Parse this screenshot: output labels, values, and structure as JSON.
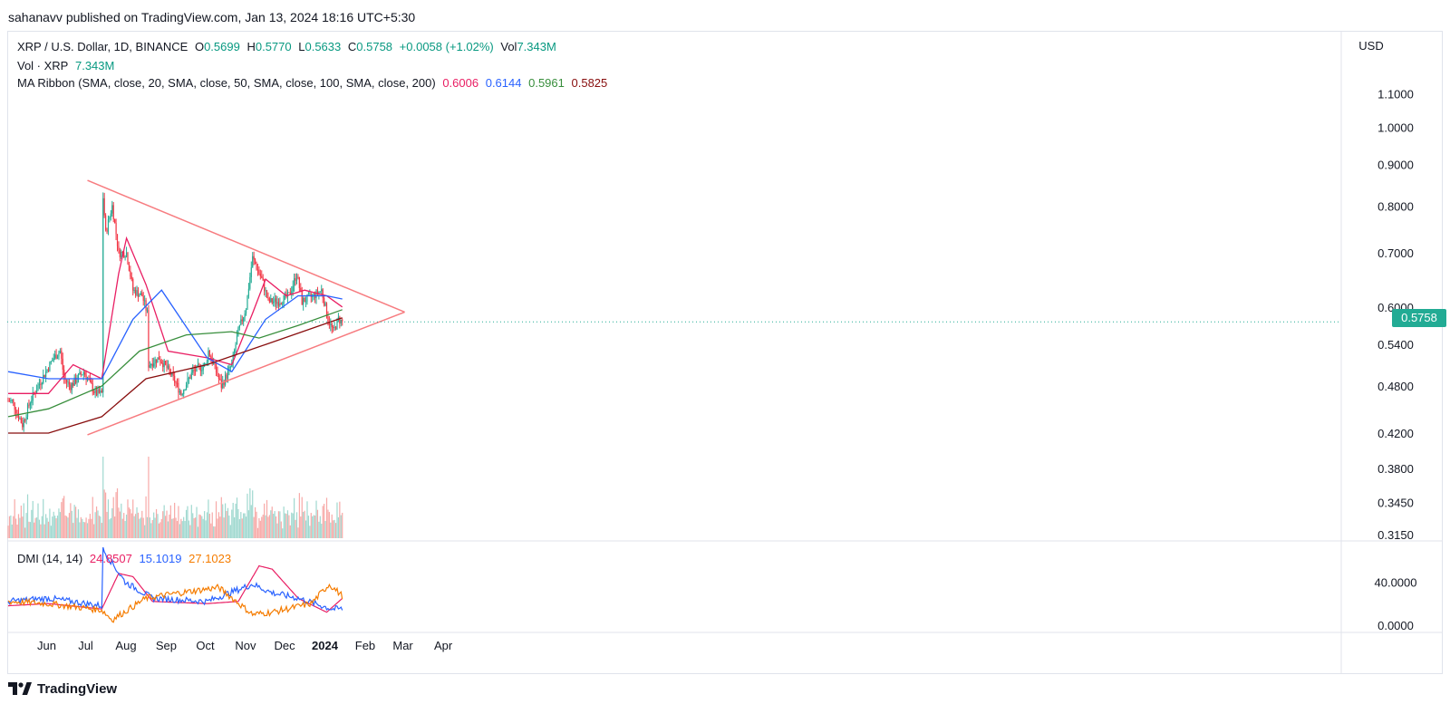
{
  "header": {
    "published": "sahanavv published on TradingView.com, Jan 13, 2024 18:16 UTC+5:30"
  },
  "legend": {
    "symbol": "XRP / U.S. Dollar, 1D, BINANCE",
    "o_label": "O",
    "o_value": "0.5699",
    "h_label": "H",
    "h_value": "0.5770",
    "l_label": "L",
    "l_value": "0.5633",
    "c_label": "C",
    "c_value": "0.5758",
    "change": "+0.0058 (+1.02%)",
    "vol_label": "Vol",
    "vol_value": "7.343M",
    "vol_line_label": "Vol · XRP",
    "vol_line_value": "7.343M",
    "ma_label": "MA Ribbon (SMA, close, 20, SMA, close, 50, SMA, close, 100, SMA, close, 200)",
    "ma_values": [
      "0.6006",
      "0.6144",
      "0.5961",
      "0.5825"
    ]
  },
  "dmi_legend": {
    "label": "DMI (14, 14)",
    "values": [
      "24.8507",
      "15.1019",
      "27.1023"
    ]
  },
  "currency_button": "USD",
  "last_price": "0.5758",
  "footer": {
    "brand": "TradingView"
  },
  "colors": {
    "up": "#22ab94",
    "down": "#f23645",
    "ma20": "#e91e63",
    "ma50": "#2962ff",
    "ma100": "#388e3c",
    "ma200": "#880e0e",
    "triangle": "#f77c80",
    "adx": "#e91e63",
    "plus_di": "#2962ff",
    "minus_di": "#f57c00"
  },
  "chart_data": {
    "type": "candlestick",
    "price_axis_ticks": [
      "1.1000",
      "1.0000",
      "0.9000",
      "0.8000",
      "0.7000",
      "0.6000",
      "0.5400",
      "0.4800",
      "0.4200",
      "0.3800",
      "0.3450",
      "0.3150"
    ],
    "dmi_axis_ticks": [
      "40.0000",
      "0.0000"
    ],
    "time_labels": [
      "Jun",
      "Jul",
      "Aug",
      "Sep",
      "Oct",
      "Nov",
      "Dec",
      "2024",
      "Feb",
      "Mar",
      "Apr"
    ],
    "price_anchors": [
      [
        "2023-05-04",
        0.46
      ],
      [
        "2023-05-12",
        0.43
      ],
      [
        "2023-05-18",
        0.46
      ],
      [
        "2023-05-27",
        0.49
      ],
      [
        "2023-06-05",
        0.52
      ],
      [
        "2023-06-10",
        0.53
      ],
      [
        "2023-06-13",
        0.49
      ],
      [
        "2023-06-18",
        0.48
      ],
      [
        "2023-06-28",
        0.5
      ],
      [
        "2023-07-07",
        0.47
      ],
      [
        "2023-07-12",
        0.47
      ],
      [
        "2023-07-13",
        0.82
      ],
      [
        "2023-07-15",
        0.74
      ],
      [
        "2023-07-20",
        0.8
      ],
      [
        "2023-07-25",
        0.7
      ],
      [
        "2023-07-31",
        0.7
      ],
      [
        "2023-08-05",
        0.63
      ],
      [
        "2023-08-12",
        0.62
      ],
      [
        "2023-08-16",
        0.59
      ],
      [
        "2023-08-17",
        0.51
      ],
      [
        "2023-08-25",
        0.52
      ],
      [
        "2023-09-02",
        0.5
      ],
      [
        "2023-09-11",
        0.47
      ],
      [
        "2023-09-20",
        0.5
      ],
      [
        "2023-09-30",
        0.51
      ],
      [
        "2023-10-02",
        0.53
      ],
      [
        "2023-10-12",
        0.48
      ],
      [
        "2023-10-20",
        0.51
      ],
      [
        "2023-10-25",
        0.56
      ],
      [
        "2023-10-31",
        0.6
      ],
      [
        "2023-11-05",
        0.69
      ],
      [
        "2023-11-12",
        0.65
      ],
      [
        "2023-11-17",
        0.61
      ],
      [
        "2023-11-25",
        0.61
      ],
      [
        "2023-12-03",
        0.62
      ],
      [
        "2023-12-09",
        0.66
      ],
      [
        "2023-12-13",
        0.61
      ],
      [
        "2023-12-22",
        0.62
      ],
      [
        "2023-12-28",
        0.63
      ],
      [
        "2024-01-02",
        0.58
      ],
      [
        "2024-01-06",
        0.56
      ],
      [
        "2024-01-10",
        0.58
      ],
      [
        "2024-01-13",
        0.5758
      ]
    ],
    "ma_anchors": {
      "sma20": [
        [
          "2023-05-01",
          0.47
        ],
        [
          "2023-06-01",
          0.47
        ],
        [
          "2023-06-20",
          0.51
        ],
        [
          "2023-07-12",
          0.49
        ],
        [
          "2023-07-25",
          0.66
        ],
        [
          "2023-07-31",
          0.73
        ],
        [
          "2023-08-15",
          0.64
        ],
        [
          "2023-09-01",
          0.53
        ],
        [
          "2023-10-01",
          0.52
        ],
        [
          "2023-10-20",
          0.51
        ],
        [
          "2023-11-05",
          0.59
        ],
        [
          "2023-11-15",
          0.65
        ],
        [
          "2023-12-01",
          0.62
        ],
        [
          "2023-12-15",
          0.63
        ],
        [
          "2024-01-01",
          0.62
        ],
        [
          "2024-01-13",
          0.6006
        ]
      ],
      "sma50": [
        [
          "2023-05-01",
          0.5
        ],
        [
          "2023-06-01",
          0.49
        ],
        [
          "2023-07-12",
          0.49
        ],
        [
          "2023-08-05",
          0.58
        ],
        [
          "2023-08-27",
          0.63
        ],
        [
          "2023-10-01",
          0.52
        ],
        [
          "2023-10-20",
          0.5
        ],
        [
          "2023-11-15",
          0.58
        ],
        [
          "2023-12-10",
          0.62
        ],
        [
          "2024-01-01",
          0.62
        ],
        [
          "2024-01-13",
          0.6144
        ]
      ],
      "sma100": [
        [
          "2023-05-01",
          0.44
        ],
        [
          "2023-06-01",
          0.45
        ],
        [
          "2023-07-12",
          0.48
        ],
        [
          "2023-08-10",
          0.53
        ],
        [
          "2023-09-15",
          0.555
        ],
        [
          "2023-10-20",
          0.56
        ],
        [
          "2023-11-10",
          0.55
        ],
        [
          "2023-12-10",
          0.57
        ],
        [
          "2024-01-13",
          0.5961
        ]
      ],
      "sma200": [
        [
          "2023-05-01",
          0.42
        ],
        [
          "2023-06-01",
          0.42
        ],
        [
          "2023-07-12",
          0.44
        ],
        [
          "2023-08-15",
          0.49
        ],
        [
          "2023-10-01",
          0.51
        ],
        [
          "2023-11-15",
          0.54
        ],
        [
          "2024-01-13",
          0.5825
        ]
      ]
    },
    "triangle": {
      "upper": [
        [
          "2023-07-01",
          0.86
        ],
        [
          "2024-03-01",
          0.592
        ]
      ],
      "lower": [
        [
          "2023-07-01",
          0.418
        ],
        [
          "2024-03-01",
          0.592
        ]
      ]
    },
    "dmi_anchors": {
      "adx": [
        [
          "2023-05-01",
          18
        ],
        [
          "2023-06-01",
          20
        ],
        [
          "2023-07-12",
          15
        ],
        [
          "2023-07-25",
          48
        ],
        [
          "2023-08-05",
          45
        ],
        [
          "2023-08-20",
          22
        ],
        [
          "2023-10-01",
          20
        ],
        [
          "2023-10-25",
          22
        ],
        [
          "2023-11-10",
          55
        ],
        [
          "2023-11-20",
          52
        ],
        [
          "2023-12-10",
          25
        ],
        [
          "2024-01-01",
          12
        ],
        [
          "2024-01-13",
          24.85
        ]
      ],
      "plus_di": [
        [
          "2023-05-01",
          22
        ],
        [
          "2023-06-01",
          25
        ],
        [
          "2023-07-12",
          18
        ],
        [
          "2023-07-13",
          70
        ],
        [
          "2023-07-30",
          40
        ],
        [
          "2023-08-20",
          25
        ],
        [
          "2023-10-01",
          22
        ],
        [
          "2023-11-05",
          38
        ],
        [
          "2023-11-20",
          30
        ],
        [
          "2023-12-10",
          25
        ],
        [
          "2024-01-05",
          15
        ],
        [
          "2024-01-13",
          15.1
        ]
      ],
      "minus_di": [
        [
          "2023-05-01",
          22
        ],
        [
          "2023-06-01",
          20
        ],
        [
          "2023-07-12",
          14
        ],
        [
          "2023-07-20",
          5
        ],
        [
          "2023-08-15",
          25
        ],
        [
          "2023-09-10",
          30
        ],
        [
          "2023-10-10",
          35
        ],
        [
          "2023-11-05",
          10
        ],
        [
          "2023-11-20",
          12
        ],
        [
          "2023-12-20",
          20
        ],
        [
          "2024-01-03",
          38
        ],
        [
          "2024-01-13",
          27.1
        ]
      ]
    }
  }
}
